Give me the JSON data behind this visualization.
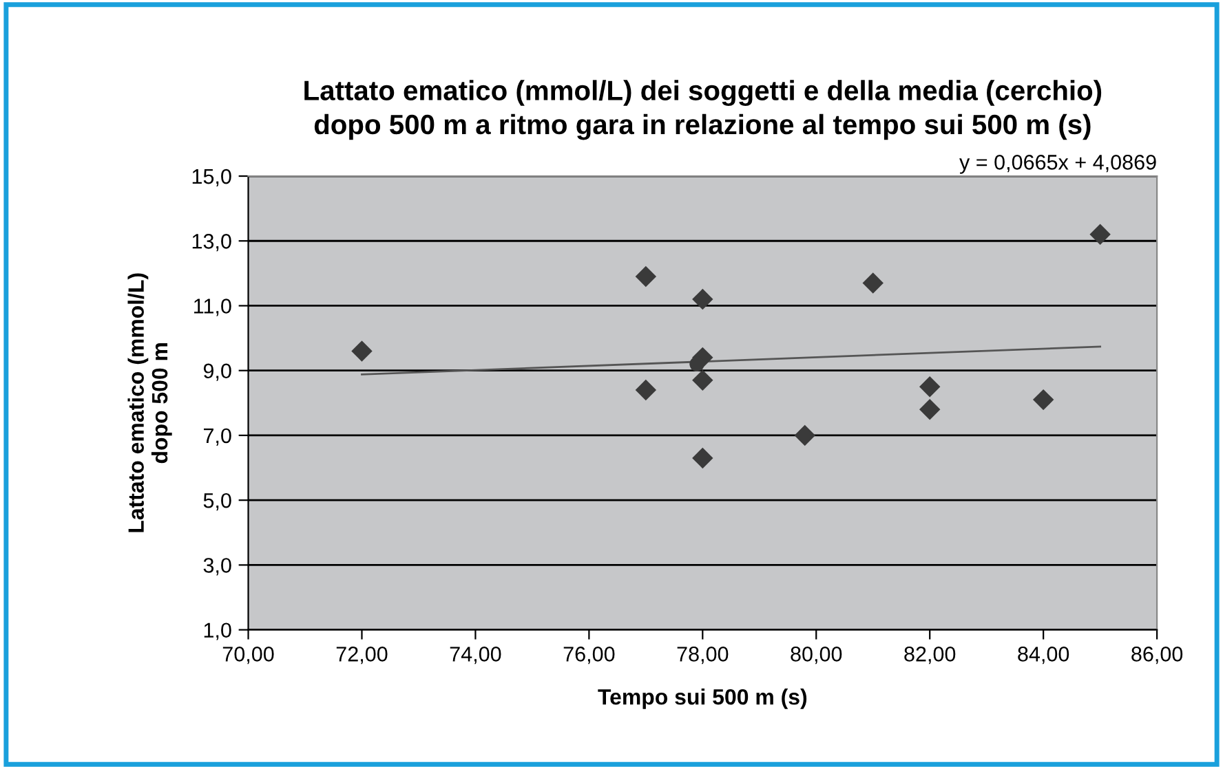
{
  "chart_data": {
    "type": "scatter",
    "title": "Lattato ematico (mmol/L) dei soggetti e della media (cerchio)\ndopo 500 m a ritmo gara in relazione al tempo sui 500 m (s)",
    "xlabel": "Tempo sui 500 m (s)",
    "ylabel": "Lattato ematico (mmol/L)\ndopo 500 m",
    "annotations": [
      "y = 0,0665x + 4,0869"
    ],
    "series": [
      {
        "marker": "diamond",
        "color": "#3a3a3a",
        "x": [
          72,
          77,
          77,
          78,
          78,
          78,
          78,
          79.8,
          81,
          82,
          82,
          84,
          85
        ],
        "values": [
          9.6,
          11.9,
          8.4,
          11.2,
          9.4,
          8.7,
          6.3,
          7.0,
          11.7,
          8.5,
          7.8,
          8.1,
          13.2
        ]
      },
      {
        "marker": "circle",
        "color": "#3a3a3a",
        "x": [
          77.9
        ],
        "values": [
          9.2
        ]
      },
      {
        "type": "line",
        "marker": "none",
        "color": "#555555",
        "x": [
          72,
          85
        ],
        "values": [
          8.88,
          9.74
        ]
      }
    ],
    "xlim": [
      70,
      86
    ],
    "ylim": [
      1,
      15
    ],
    "xticks": [
      {
        "value": 70,
        "label": "70,00"
      },
      {
        "value": 72,
        "label": "72,00"
      },
      {
        "value": 74,
        "label": "74,00"
      },
      {
        "value": 76,
        "label": "76,00"
      },
      {
        "value": 78,
        "label": "78,00"
      },
      {
        "value": 80,
        "label": "80,00"
      },
      {
        "value": 82,
        "label": "82,00"
      },
      {
        "value": 84,
        "label": "84,00"
      },
      {
        "value": 86,
        "label": "86,00"
      }
    ],
    "yticks": [
      {
        "value": 1,
        "label": "1,0"
      },
      {
        "value": 3,
        "label": "3,0"
      },
      {
        "value": 5,
        "label": "5,0"
      },
      {
        "value": 7,
        "label": "7,0"
      },
      {
        "value": 9,
        "label": "9,0"
      },
      {
        "value": 11,
        "label": "11,0"
      },
      {
        "value": 13,
        "label": "13,0"
      },
      {
        "value": 15,
        "label": "15,0"
      }
    ],
    "grid": "y",
    "legend": false
  }
}
